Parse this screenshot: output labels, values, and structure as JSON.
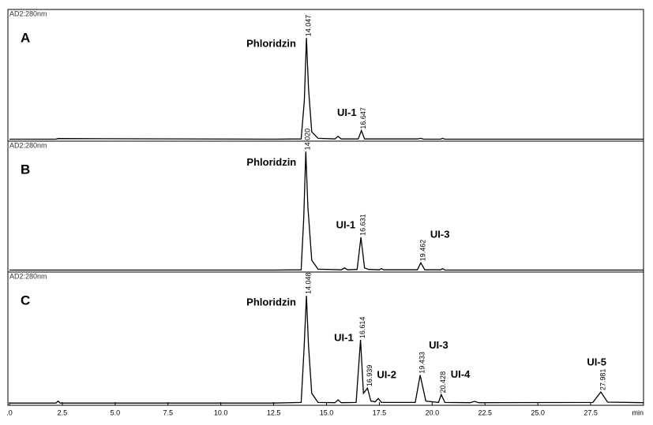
{
  "chart_data": {
    "type": "line",
    "color": "#000000",
    "xlabel": "min",
    "xlim": [
      0,
      30
    ],
    "ylim": [
      0,
      100
    ],
    "xticks": [
      {
        "value": 0,
        "label": ".0"
      },
      2.5,
      {
        "value": 5,
        "label": "5.0"
      },
      7.5,
      {
        "value": 10,
        "label": "10.0"
      },
      12.5,
      {
        "value": 15,
        "label": "15.0"
      },
      17.5,
      {
        "value": 20,
        "label": "20.0"
      },
      22.5,
      {
        "value": 25,
        "label": "25.0"
      },
      27.5
    ],
    "panels": [
      {
        "label": "A",
        "detector": "AD2:280nm",
        "x": [
          0,
          2.2,
          2.3,
          12.5,
          13.8,
          13.95,
          14.05,
          14.15,
          14.3,
          14.6,
          15.4,
          15.55,
          15.7,
          16.5,
          16.65,
          16.8,
          19.3,
          19.45,
          19.6,
          20.4,
          20.5,
          20.6,
          30
        ],
        "values": [
          0.3,
          0.3,
          0.8,
          0.3,
          0.5,
          30,
          79,
          40,
          6,
          1,
          0.5,
          2.5,
          0.5,
          0.5,
          7,
          0.5,
          0.5,
          1,
          0.3,
          0.3,
          1,
          0.3,
          0.3
        ],
        "peaks": [
          {
            "name": "Phloridzin",
            "rt": 14.047
          },
          {
            "name": "UI-1",
            "rt": 16.647
          }
        ]
      },
      {
        "label": "B",
        "detector": "AD2:280nm",
        "x": [
          0,
          12.5,
          13.8,
          13.92,
          14.02,
          14.12,
          14.3,
          14.6,
          15.7,
          15.85,
          16.0,
          16.45,
          16.63,
          16.8,
          17.0,
          17.5,
          17.6,
          17.7,
          19.3,
          19.46,
          19.65,
          20.4,
          20.5,
          20.6,
          30
        ],
        "values": [
          0.3,
          0.3,
          0.5,
          40,
          93,
          50,
          8,
          1,
          0.5,
          2,
          0.5,
          0.8,
          26,
          2,
          0.8,
          0.5,
          1.5,
          0.5,
          0.5,
          6,
          0.5,
          0.5,
          1.5,
          0.3,
          0.3
        ],
        "peaks": [
          {
            "name": "Phloridzin",
            "rt": {
              "value": 14.02,
              "label": "14.020"
            }
          },
          {
            "name": "UI-1",
            "rt": 16.631
          },
          {
            "name": "UI-3",
            "rt": 19.462
          }
        ]
      },
      {
        "label": "C",
        "detector": "AD2:280nm",
        "x": [
          0,
          2.2,
          2.3,
          2.4,
          12.5,
          13.8,
          13.93,
          14.05,
          14.15,
          14.3,
          14.6,
          15.4,
          15.55,
          15.7,
          16.4,
          16.61,
          16.75,
          16.94,
          17.1,
          17.3,
          17.45,
          17.6,
          19.2,
          19.43,
          19.7,
          20.3,
          20.43,
          20.6,
          21.8,
          22.0,
          22.2,
          27.6,
          27.98,
          28.3,
          30
        ],
        "values": [
          0.5,
          0.5,
          2,
          0.5,
          0.5,
          1,
          40,
          83,
          45,
          8,
          1,
          0.8,
          3,
          0.8,
          1,
          49,
          8,
          12,
          2,
          1.5,
          4,
          1,
          1,
          22,
          2,
          1,
          7,
          1,
          0.8,
          1.8,
          0.8,
          1,
          9,
          1.2,
          0.8
        ],
        "peaks": [
          {
            "name": "Phloridzin",
            "rt": 14.048
          },
          {
            "name": "UI-1",
            "rt": 16.614
          },
          {
            "name": "UI-2",
            "rt": 16.939
          },
          {
            "name": "UI-3",
            "rt": 19.433
          },
          {
            "name": "UI-4",
            "rt": 20.428
          },
          {
            "name": "UI-5",
            "rt": 27.981
          }
        ]
      }
    ]
  }
}
